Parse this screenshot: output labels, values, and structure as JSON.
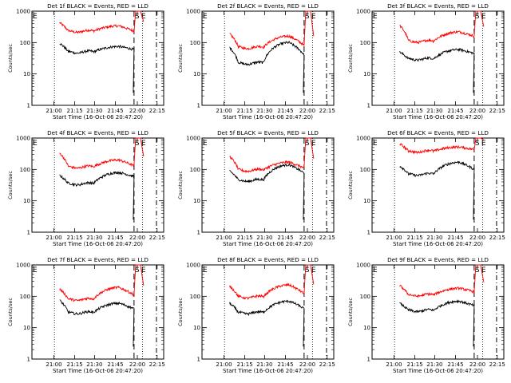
{
  "figure": {
    "background": "#ffffff",
    "event_color": "#000000",
    "lld_color": "#ff0000"
  },
  "chart_data": [
    {
      "type": "line",
      "title": "Det 1f BLACK = Events, RED = LLD",
      "xlabel": "Start Time (16-Oct-06 20:47:20)",
      "ylabel": "Counts/sec",
      "yscale": "log",
      "ylim": [
        1,
        1000
      ],
      "xticks": [
        "21:00",
        "21:15",
        "21:30",
        "21:45",
        "22:00",
        "22:15"
      ],
      "yticks": [
        "1",
        "10",
        "100",
        "1000"
      ],
      "markers": [
        {
          "label": "S",
          "style": "dashed"
        },
        {
          "label": "E",
          "style": "dash-dot"
        }
      ],
      "series": [
        {
          "name": "RED = LLD",
          "color": "#ff0000",
          "start": 430,
          "min": 230,
          "peak": 340,
          "end": 230
        },
        {
          "name": "BLACK = Events",
          "color": "#000000",
          "start": 95,
          "min": 50,
          "peak": 75,
          "end": 60
        }
      ]
    },
    {
      "type": "line",
      "title": "Det 2f BLACK = Events, RED = LLD",
      "xlabel": "Start Time (16-Oct-06 20:47:20)",
      "ylabel": "Counts/sec",
      "yscale": "log",
      "ylim": [
        1,
        1000
      ],
      "xticks": [
        "21:00",
        "21:15",
        "21:30",
        "21:45",
        "22:00",
        "22:15"
      ],
      "yticks": [
        "1",
        "10",
        "100",
        "1000"
      ],
      "markers": [
        {
          "label": "S",
          "style": "dashed"
        },
        {
          "label": "E",
          "style": "dash-dot"
        }
      ],
      "series": [
        {
          "name": "RED = LLD",
          "color": "#ff0000",
          "start": 190,
          "min": 70,
          "peak": 160,
          "end": 80
        },
        {
          "name": "BLACK = Events",
          "color": "#000000",
          "start": 70,
          "min": 22,
          "peak": 100,
          "end": 40
        }
      ]
    },
    {
      "type": "line",
      "title": "Det 3f BLACK = Events, RED = LLD",
      "xlabel": "Start Time (16-Oct-06 20:47:20)",
      "ylabel": "Counts/sec",
      "yscale": "log",
      "ylim": [
        1,
        1000
      ],
      "xticks": [
        "21:00",
        "21:15",
        "21:30",
        "21:45",
        "22:00",
        "22:15"
      ],
      "yticks": [
        "1",
        "10",
        "100",
        "1000"
      ],
      "markers": [
        {
          "label": "S",
          "style": "dashed"
        },
        {
          "label": "E",
          "style": "dash-dot"
        }
      ],
      "series": [
        {
          "name": "RED = LLD",
          "color": "#ff0000",
          "start": 350,
          "min": 110,
          "peak": 220,
          "end": 160
        },
        {
          "name": "BLACK = Events",
          "color": "#000000",
          "start": 50,
          "min": 30,
          "peak": 60,
          "end": 45
        }
      ]
    },
    {
      "type": "line",
      "title": "Det 4f BLACK = Events, RED = LLD",
      "xlabel": "Start Time (16-Oct-06 20:47:20)",
      "ylabel": "Counts/sec",
      "yscale": "log",
      "ylim": [
        1,
        1000
      ],
      "xticks": [
        "21:00",
        "21:15",
        "21:30",
        "21:45",
        "22:00",
        "22:15"
      ],
      "yticks": [
        "1",
        "10",
        "100",
        "1000"
      ],
      "markers": [
        {
          "label": "S",
          "style": "dashed"
        },
        {
          "label": "E",
          "style": "dash-dot"
        }
      ],
      "series": [
        {
          "name": "RED = LLD",
          "color": "#ff0000",
          "start": 330,
          "min": 120,
          "peak": 200,
          "end": 130
        },
        {
          "name": "BLACK = Events",
          "color": "#000000",
          "start": 65,
          "min": 35,
          "peak": 80,
          "end": 60
        }
      ]
    },
    {
      "type": "line",
      "title": "Det 5f BLACK = Events, RED = LLD",
      "xlabel": "Start Time (16-Oct-06 20:47:20)",
      "ylabel": "Counts/sec",
      "yscale": "log",
      "ylim": [
        1,
        1000
      ],
      "xticks": [
        "21:00",
        "21:15",
        "21:30",
        "21:45",
        "22:00",
        "22:15"
      ],
      "yticks": [
        "1",
        "10",
        "100",
        "1000"
      ],
      "markers": [
        {
          "label": "S",
          "style": "dashed"
        },
        {
          "label": "E",
          "style": "dash-dot"
        }
      ],
      "series": [
        {
          "name": "RED = LLD",
          "color": "#ff0000",
          "start": 260,
          "min": 95,
          "peak": 170,
          "end": 110
        },
        {
          "name": "BLACK = Events",
          "color": "#000000",
          "start": 90,
          "min": 45,
          "peak": 140,
          "end": 75
        }
      ]
    },
    {
      "type": "line",
      "title": "Det 6f BLACK = Events, RED = LLD",
      "xlabel": "Start Time (16-Oct-06 20:47:20)",
      "ylabel": "Counts/sec",
      "yscale": "log",
      "ylim": [
        1,
        1000
      ],
      "xticks": [
        "21:00",
        "21:15",
        "21:30",
        "21:45",
        "22:00",
        "22:15"
      ],
      "yticks": [
        "1",
        "10",
        "100",
        "1000"
      ],
      "markers": [
        {
          "label": "S",
          "style": "dashed"
        },
        {
          "label": "E",
          "style": "dash-dot"
        }
      ],
      "series": [
        {
          "name": "RED = LLD",
          "color": "#ff0000",
          "start": 650,
          "min": 380,
          "peak": 520,
          "end": 430
        },
        {
          "name": "BLACK = Events",
          "color": "#000000",
          "start": 130,
          "min": 70,
          "peak": 170,
          "end": 100
        }
      ]
    },
    {
      "type": "line",
      "title": "Det 7f BLACK = Events, RED = LLD",
      "xlabel": "Start Time (16-Oct-06 20:47:20)",
      "ylabel": "Counts/sec",
      "yscale": "log",
      "ylim": [
        1,
        1000
      ],
      "xticks": [
        "21:00",
        "21:15",
        "21:30",
        "21:45",
        "22:00",
        "22:15"
      ],
      "yticks": [
        "1",
        "10",
        "100",
        "1000"
      ],
      "markers": [
        {
          "label": "S",
          "style": "dashed"
        },
        {
          "label": "E",
          "style": "dash-dot"
        }
      ],
      "series": [
        {
          "name": "RED = LLD",
          "color": "#ff0000",
          "start": 170,
          "min": 80,
          "peak": 190,
          "end": 110
        },
        {
          "name": "BLACK = Events",
          "color": "#000000",
          "start": 75,
          "min": 30,
          "peak": 60,
          "end": 40
        }
      ]
    },
    {
      "type": "line",
      "title": "Det 8f BLACK = Events, RED = LLD",
      "xlabel": "Start Time (16-Oct-06 20:47:20)",
      "ylabel": "Counts/sec",
      "yscale": "log",
      "ylim": [
        1,
        1000
      ],
      "xticks": [
        "21:00",
        "21:15",
        "21:30",
        "21:45",
        "22:00",
        "22:15"
      ],
      "yticks": [
        "1",
        "10",
        "100",
        "1000"
      ],
      "markers": [
        {
          "label": "S",
          "style": "dashed"
        },
        {
          "label": "E",
          "style": "dash-dot"
        }
      ],
      "series": [
        {
          "name": "RED = LLD",
          "color": "#ff0000",
          "start": 210,
          "min": 95,
          "peak": 230,
          "end": 120
        },
        {
          "name": "BLACK = Events",
          "color": "#000000",
          "start": 60,
          "min": 30,
          "peak": 70,
          "end": 40
        }
      ]
    },
    {
      "type": "line",
      "title": "Det 9f BLACK = Events, RED = LLD",
      "xlabel": "Start Time (16-Oct-06 20:47:20)",
      "ylabel": "Counts/sec",
      "yscale": "log",
      "ylim": [
        1,
        1000
      ],
      "xticks": [
        "21:00",
        "21:15",
        "21:30",
        "21:45",
        "22:00",
        "22:15"
      ],
      "yticks": [
        "1",
        "10",
        "100",
        "1000"
      ],
      "markers": [
        {
          "label": "S",
          "style": "dashed"
        },
        {
          "label": "E",
          "style": "dash-dot"
        }
      ],
      "series": [
        {
          "name": "RED = LLD",
          "color": "#ff0000",
          "start": 220,
          "min": 110,
          "peak": 180,
          "end": 140
        },
        {
          "name": "BLACK = Events",
          "color": "#000000",
          "start": 60,
          "min": 35,
          "peak": 70,
          "end": 50
        }
      ]
    }
  ]
}
